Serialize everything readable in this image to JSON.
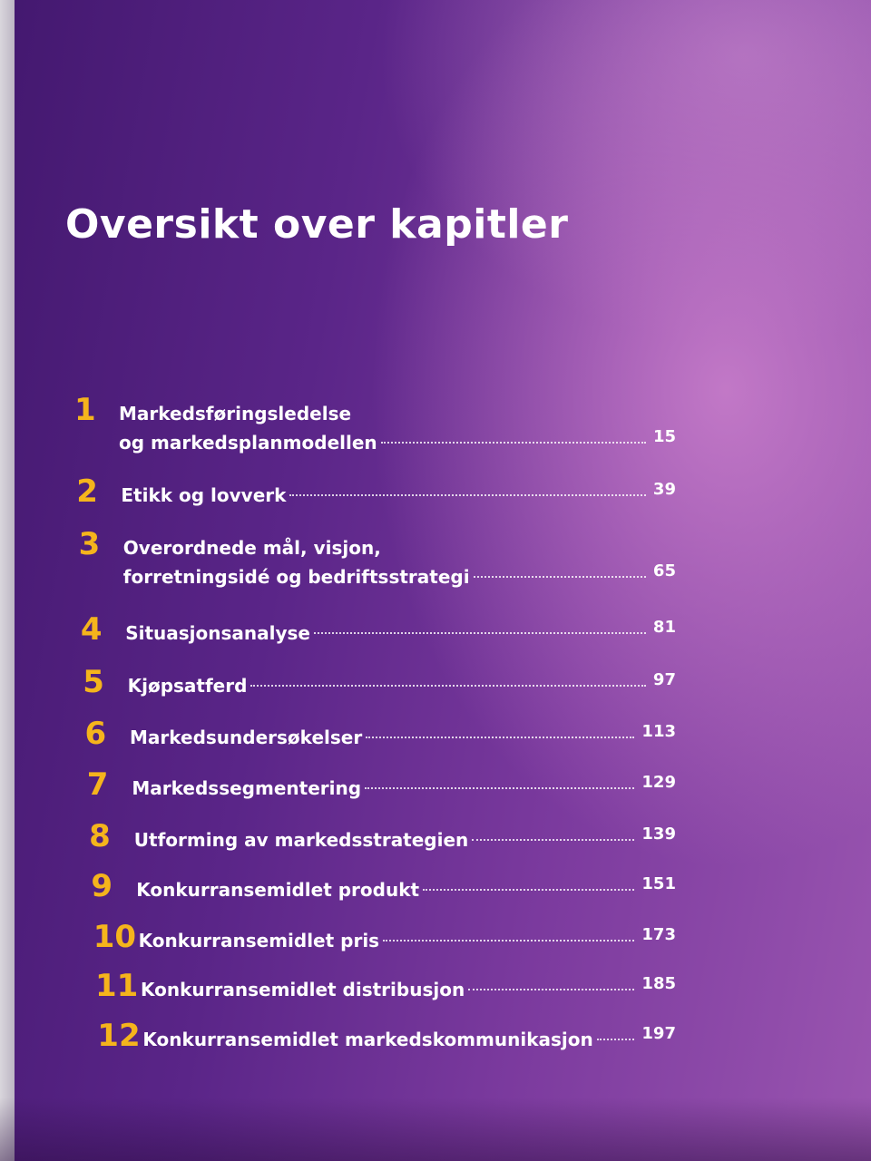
{
  "title": "Oversikt over kapitler",
  "chapters": [
    {
      "number": 1,
      "title_lines": [
        "Markedsføringsledelse",
        "og markedsplanmodellen"
      ],
      "page": 15
    },
    {
      "number": 2,
      "title_lines": [
        "Etikk og lovverk"
      ],
      "page": 39
    },
    {
      "number": 3,
      "title_lines": [
        "Overordnede mål, visjon,",
        "forretningsidé og bedriftsstrategi"
      ],
      "page": 65
    },
    {
      "number": 4,
      "title_lines": [
        "Situasjonsanalyse"
      ],
      "page": 81
    },
    {
      "number": 5,
      "title_lines": [
        "Kjøpsatferd"
      ],
      "page": 97
    },
    {
      "number": 6,
      "title_lines": [
        "Markedsundersøkelser"
      ],
      "page": 113
    },
    {
      "number": 7,
      "title_lines": [
        "Markedssegmentering"
      ],
      "page": 129
    },
    {
      "number": 8,
      "title_lines": [
        "Utforming av markedsstrategien"
      ],
      "page": 139
    },
    {
      "number": 9,
      "title_lines": [
        "Konkurransemidlet produkt"
      ],
      "page": 151
    },
    {
      "number": 10,
      "title_lines": [
        "Konkurransemidlet pris"
      ],
      "page": 173
    },
    {
      "number": 11,
      "title_lines": [
        "Konkurransemidlet distribusjon"
      ],
      "page": 185
    },
    {
      "number": 12,
      "title_lines": [
        "Konkurransemidlet markedskommunikasjon"
      ],
      "page": 197
    }
  ]
}
